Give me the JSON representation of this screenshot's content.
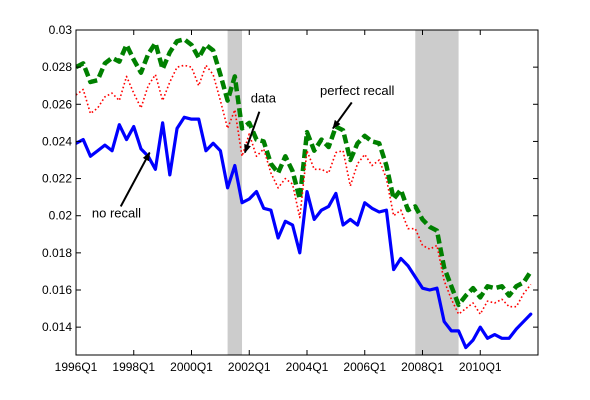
{
  "chart_data": {
    "type": "line",
    "xlim": [
      1996.0,
      2012.0
    ],
    "ylim": [
      0.0125,
      0.03
    ],
    "grid": false,
    "xticks": [
      {
        "x": 1996.0,
        "label": "1996Q1"
      },
      {
        "x": 1998.0,
        "label": "1998Q1"
      },
      {
        "x": 2000.0,
        "label": "2000Q1"
      },
      {
        "x": 2002.0,
        "label": "2002Q1"
      },
      {
        "x": 2004.0,
        "label": "2004Q1"
      },
      {
        "x": 2006.0,
        "label": "2006Q1"
      },
      {
        "x": 2008.0,
        "label": "2008Q1"
      },
      {
        "x": 2010.0,
        "label": "2010Q1"
      }
    ],
    "yticks": [
      {
        "y": 0.014,
        "label": "0.014"
      },
      {
        "y": 0.016,
        "label": "0.016"
      },
      {
        "y": 0.018,
        "label": "0.018"
      },
      {
        "y": 0.02,
        "label": "0.02"
      },
      {
        "y": 0.022,
        "label": "0.022"
      },
      {
        "y": 0.024,
        "label": "0.024"
      },
      {
        "y": 0.026,
        "label": "0.026"
      },
      {
        "y": 0.028,
        "label": "0.028"
      },
      {
        "y": 0.03,
        "label": "0.03"
      }
    ],
    "shaded_regions": [
      {
        "start": 2001.25,
        "end": 2001.75,
        "color": "#cccccc"
      },
      {
        "start": 2007.75,
        "end": 2009.25,
        "color": "#cccccc"
      }
    ],
    "x": [
      1996.0,
      1996.25,
      1996.5,
      1996.75,
      1997.0,
      1997.25,
      1997.5,
      1997.75,
      1998.0,
      1998.25,
      1998.5,
      1998.75,
      1999.0,
      1999.25,
      1999.5,
      1999.75,
      2000.0,
      2000.25,
      2000.5,
      2000.75,
      2001.0,
      2001.25,
      2001.5,
      2001.75,
      2002.0,
      2002.25,
      2002.5,
      2002.75,
      2003.0,
      2003.25,
      2003.5,
      2003.75,
      2004.0,
      2004.25,
      2004.5,
      2004.75,
      2005.0,
      2005.25,
      2005.5,
      2005.75,
      2006.0,
      2006.25,
      2006.5,
      2006.75,
      2007.0,
      2007.25,
      2007.5,
      2007.75,
      2008.0,
      2008.25,
      2008.5,
      2008.75,
      2009.0,
      2009.25,
      2009.5,
      2009.75,
      2010.0,
      2010.25,
      2010.5,
      2010.75,
      2011.0,
      2011.25,
      2011.5,
      2011.75
    ],
    "series": [
      {
        "name": "perfect recall",
        "color": "#008000",
        "style": "dashed",
        "values": [
          0.028,
          0.0282,
          0.0272,
          0.0273,
          0.0282,
          0.0285,
          0.0283,
          0.0292,
          0.0284,
          0.0277,
          0.0287,
          0.0293,
          0.0279,
          0.0288,
          0.0294,
          0.0295,
          0.0292,
          0.0285,
          0.0292,
          0.0289,
          0.0276,
          0.0262,
          0.0275,
          0.0247,
          0.025,
          0.0241,
          0.024,
          0.0228,
          0.0223,
          0.0232,
          0.0224,
          0.0209,
          0.0245,
          0.0235,
          0.0241,
          0.0237,
          0.0248,
          0.0246,
          0.023,
          0.0239,
          0.0243,
          0.024,
          0.0239,
          0.0227,
          0.0209,
          0.0214,
          0.0203,
          0.0205,
          0.0198,
          0.0194,
          0.0192,
          0.0172,
          0.0162,
          0.0152,
          0.0157,
          0.0161,
          0.0156,
          0.0162,
          0.0161,
          0.0162,
          0.0157,
          0.0162,
          0.0164,
          0.017
        ]
      },
      {
        "name": "data",
        "color": "#ff0000",
        "style": "dotted",
        "values": [
          0.0265,
          0.0268,
          0.0255,
          0.0258,
          0.0264,
          0.0266,
          0.0262,
          0.0275,
          0.0266,
          0.0258,
          0.027,
          0.0276,
          0.0262,
          0.0272,
          0.028,
          0.0281,
          0.028,
          0.027,
          0.0281,
          0.0276,
          0.0262,
          0.0247,
          0.0257,
          0.0232,
          0.0244,
          0.0232,
          0.0236,
          0.0223,
          0.0215,
          0.022,
          0.0217,
          0.0199,
          0.0235,
          0.0225,
          0.0225,
          0.0223,
          0.0234,
          0.0235,
          0.0216,
          0.0228,
          0.0233,
          0.0227,
          0.023,
          0.022,
          0.02,
          0.0203,
          0.0193,
          0.0193,
          0.0184,
          0.0182,
          0.0184,
          0.0165,
          0.0155,
          0.0147,
          0.015,
          0.0153,
          0.0147,
          0.0154,
          0.0153,
          0.0155,
          0.0151,
          0.0151,
          0.0158,
          0.0163
        ]
      },
      {
        "name": "no recall",
        "color": "#0000ff",
        "style": "solid",
        "values": [
          0.0239,
          0.0241,
          0.0232,
          0.0235,
          0.0238,
          0.0235,
          0.0249,
          0.0241,
          0.0248,
          0.0236,
          0.0232,
          0.0225,
          0.025,
          0.0222,
          0.0247,
          0.0253,
          0.0252,
          0.0252,
          0.0235,
          0.0239,
          0.0235,
          0.0215,
          0.0227,
          0.0207,
          0.0209,
          0.0213,
          0.0204,
          0.0203,
          0.0188,
          0.0197,
          0.0195,
          0.018,
          0.0213,
          0.0198,
          0.0203,
          0.0205,
          0.0212,
          0.0195,
          0.0198,
          0.0195,
          0.0207,
          0.0204,
          0.0202,
          0.0203,
          0.0171,
          0.0177,
          0.0173,
          0.0167,
          0.0161,
          0.016,
          0.0161,
          0.0143,
          0.0138,
          0.0138,
          0.0129,
          0.0133,
          0.014,
          0.0134,
          0.0136,
          0.0134,
          0.0134,
          0.0139,
          0.0143,
          0.0147
        ]
      }
    ],
    "annotations": [
      {
        "text": "perfect recall",
        "label_x": 2004.45,
        "label_y": 0.0265,
        "arrow_from": [
          2005.55,
          0.0261
        ],
        "arrow_to": [
          2004.9,
          0.0247
        ]
      },
      {
        "text": "data",
        "label_x": 2002.05,
        "label_y": 0.0261,
        "arrow_from": [
          2002.35,
          0.0256
        ],
        "arrow_to": [
          2001.85,
          0.0234
        ]
      },
      {
        "text": "no recall",
        "label_x": 1996.55,
        "label_y": 0.0199,
        "arrow_from": [
          1997.55,
          0.0205
        ],
        "arrow_to": [
          1998.55,
          0.0234
        ]
      }
    ]
  }
}
